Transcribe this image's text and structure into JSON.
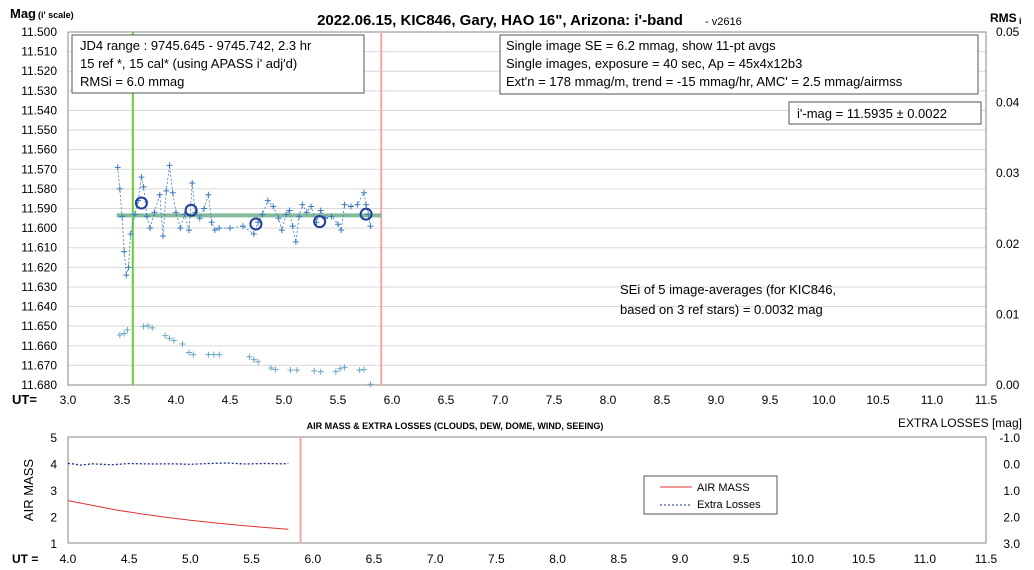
{
  "chart_data": [
    {
      "type": "scatter",
      "title": "2022.06.15, KIC846, Gary, HAO 16\", Arizona: i'-band",
      "version": "- v2616",
      "ylabel_left": "Mag",
      "ylabel_left_sub": "(i' scale)",
      "ylabel_right": "RMS",
      "ylabel_right_sub": "i",
      "xlabel": "UT=",
      "xlim": [
        3.0,
        11.5
      ],
      "x_ticks": [
        "3.0",
        "3.5",
        "4.0",
        "4.5",
        "5.0",
        "5.5",
        "6.0",
        "6.5",
        "7.0",
        "7.5",
        "8.0",
        "8.5",
        "9.0",
        "9.5",
        "10.0",
        "10.5",
        "11.0",
        "11.5"
      ],
      "ylim": [
        11.5,
        11.68
      ],
      "y_reversed": true,
      "y_ticks": [
        "11.500",
        "11.510",
        "11.520",
        "11.530",
        "11.540",
        "11.550",
        "11.560",
        "11.570",
        "11.580",
        "11.590",
        "11.600",
        "11.610",
        "11.620",
        "11.630",
        "11.640",
        "11.650",
        "11.660",
        "11.670",
        "11.680"
      ],
      "y2lim": [
        0,
        0.05
      ],
      "y2_ticks": [
        "0.05",
        "0.04",
        "0.03",
        "0.02",
        "0.01",
        "0.00"
      ],
      "grid": "horizontal",
      "vertical_lines": [
        {
          "x": 3.6,
          "color": "#66cc33"
        },
        {
          "x": 5.9,
          "color": "#f4a6a6"
        }
      ],
      "mean_mag": 11.5935,
      "mean_x_range": [
        3.45,
        5.9
      ],
      "mean_line_color": "#6fb08a",
      "single_images_color": "#3a7bbf",
      "single_images": [
        [
          3.46,
          11.569
        ],
        [
          3.48,
          11.58
        ],
        [
          3.5,
          11.594
        ],
        [
          3.52,
          11.612
        ],
        [
          3.54,
          11.624
        ],
        [
          3.56,
          11.62
        ],
        [
          3.58,
          11.603
        ],
        [
          3.62,
          11.593
        ],
        [
          3.65,
          11.586
        ],
        [
          3.68,
          11.574
        ],
        [
          3.7,
          11.579
        ],
        [
          3.73,
          11.594
        ],
        [
          3.76,
          11.6
        ],
        [
          3.8,
          11.592
        ],
        [
          3.85,
          11.583
        ],
        [
          3.88,
          11.604
        ],
        [
          3.91,
          11.581
        ],
        [
          3.94,
          11.568
        ],
        [
          3.97,
          11.582
        ],
        [
          4.0,
          11.592
        ],
        [
          4.04,
          11.6
        ],
        [
          4.08,
          11.593
        ],
        [
          4.12,
          11.601
        ],
        [
          4.15,
          11.577
        ],
        [
          4.18,
          11.592
        ],
        [
          4.22,
          11.595
        ],
        [
          4.26,
          11.59
        ],
        [
          4.3,
          11.583
        ],
        [
          4.33,
          11.597
        ],
        [
          4.36,
          11.601
        ],
        [
          4.4,
          11.6
        ],
        [
          4.5,
          11.6
        ],
        [
          4.62,
          11.599
        ],
        [
          4.72,
          11.603
        ],
        [
          4.76,
          11.597
        ],
        [
          4.8,
          11.593
        ],
        [
          4.85,
          11.586
        ],
        [
          4.9,
          11.589
        ],
        [
          4.95,
          11.595
        ],
        [
          4.98,
          11.601
        ],
        [
          5.02,
          11.593
        ],
        [
          5.05,
          11.591
        ],
        [
          5.08,
          11.599
        ],
        [
          5.11,
          11.607
        ],
        [
          5.14,
          11.594
        ],
        [
          5.17,
          11.588
        ],
        [
          5.21,
          11.592
        ],
        [
          5.25,
          11.589
        ],
        [
          5.3,
          11.597
        ],
        [
          5.34,
          11.591
        ],
        [
          5.38,
          11.595
        ],
        [
          5.44,
          11.594
        ],
        [
          5.5,
          11.598
        ],
        [
          5.53,
          11.601
        ],
        [
          5.56,
          11.588
        ],
        [
          5.62,
          11.589
        ],
        [
          5.68,
          11.588
        ],
        [
          5.74,
          11.582
        ],
        [
          5.76,
          11.588
        ],
        [
          5.78,
          11.593
        ],
        [
          5.8,
          11.599
        ]
      ],
      "averages": [
        [
          3.68,
          11.5872
        ],
        [
          4.14,
          11.5909
        ],
        [
          4.74,
          11.5979
        ],
        [
          5.33,
          11.5967
        ],
        [
          5.76,
          11.5929
        ]
      ],
      "rms_color": "#6aa8c4",
      "rms_points": [
        [
          3.48,
          0.0071
        ],
        [
          3.52,
          0.0073
        ],
        [
          3.55,
          0.0078
        ],
        [
          3.7,
          0.0083
        ],
        [
          3.74,
          0.0084
        ],
        [
          3.78,
          0.0081
        ],
        [
          3.9,
          0.007
        ],
        [
          3.94,
          0.0066
        ],
        [
          3.98,
          0.0063
        ],
        [
          4.06,
          0.0058
        ],
        [
          4.12,
          0.0046
        ],
        [
          4.16,
          0.0043
        ],
        [
          4.3,
          0.0043
        ],
        [
          4.35,
          0.0043
        ],
        [
          4.4,
          0.0043
        ],
        [
          4.68,
          0.004
        ],
        [
          4.72,
          0.0036
        ],
        [
          4.76,
          0.0033
        ],
        [
          4.88,
          0.0024
        ],
        [
          4.92,
          0.0022
        ],
        [
          5.06,
          0.0021
        ],
        [
          5.12,
          0.0021
        ],
        [
          5.28,
          0.002
        ],
        [
          5.34,
          0.0019
        ],
        [
          5.48,
          0.0019
        ],
        [
          5.52,
          0.0023
        ],
        [
          5.56,
          0.0025
        ],
        [
          5.7,
          0.0021
        ],
        [
          5.74,
          0.0022
        ],
        [
          5.8,
          0.0001
        ]
      ],
      "annotations": {
        "range_box": [
          "JD4 range : 9745.645 - 9745.742, 2.3  hr",
          "15 ref *, 15 cal* (using APASS i' adj'd)",
          "RMSi = 6.0 mmag"
        ],
        "info_box": [
          "Single image SE = 6.2 mmag, show 11-pt avgs",
          "Single images, exposure = 40 sec, Ap = 45x4x12b3",
          "Ext'n = 178 mmag/m, trend = -15 mmag/hr, AMC' = 2.5 mmag/airmss"
        ],
        "mag_box": "i'-mag = 11.5935 ± 0.0022",
        "sei_box": [
          "SEi of 5 image-averages (for KIC846,",
          "based on 3 ref stars) = 0.0032 mag"
        ]
      }
    },
    {
      "type": "line",
      "title": "AIR MASS & EXTRA LOSSES (CLOUDS, DEW, DOME, WIND, SEEING)",
      "ylabel_left": "AIR MASS",
      "ylabel_right": "EXTRA LOSSES [mag]",
      "xlabel": "UT =",
      "xlim": [
        4.0,
        11.5
      ],
      "x_ticks": [
        "4.0",
        "4.5",
        "5.0",
        "5.5",
        "6.0",
        "6.5",
        "7.0",
        "7.5",
        "8.0",
        "8.5",
        "9.0",
        "9.5",
        "10.0",
        "10.5",
        "11.0",
        "11.5"
      ],
      "ylim": [
        1,
        5
      ],
      "y_ticks": [
        "5",
        "4",
        "3",
        "2",
        "1"
      ],
      "y2lim": [
        -1.0,
        3.0
      ],
      "y2_reversed": true,
      "y2_ticks": [
        "-1.0",
        "0.0",
        "1.0",
        "2.0",
        "3.0"
      ],
      "vertical_lines": [
        {
          "x": 5.9,
          "color": "#f4a6a6"
        }
      ],
      "legend": {
        "position": "center-right",
        "entries": [
          "AIR MASS",
          "Extra Losses"
        ]
      },
      "series": [
        {
          "name": "AIR MASS",
          "axis": "left",
          "color": "#dd3333",
          "points": [
            [
              4.0,
              2.6
            ],
            [
              4.2,
              2.42
            ],
            [
              4.4,
              2.24
            ],
            [
              4.6,
              2.1
            ],
            [
              4.8,
              1.97
            ],
            [
              5.0,
              1.86
            ],
            [
              5.2,
              1.76
            ],
            [
              5.4,
              1.67
            ],
            [
              5.6,
              1.59
            ],
            [
              5.8,
              1.52
            ]
          ]
        },
        {
          "name": "Extra Losses",
          "axis": "right",
          "color": "#1a2f8f",
          "points": [
            [
              4.0,
              0.0
            ],
            [
              4.05,
              0.02
            ],
            [
              4.1,
              0.06
            ],
            [
              4.2,
              0.01
            ],
            [
              4.35,
              0.05
            ],
            [
              4.5,
              0.0
            ],
            [
              4.7,
              0.02
            ],
            [
              4.85,
              0.01
            ],
            [
              5.0,
              0.03
            ],
            [
              5.15,
              0.0
            ],
            [
              5.3,
              -0.02
            ],
            [
              5.45,
              0.02
            ],
            [
              5.6,
              0.0
            ],
            [
              5.75,
              0.01
            ],
            [
              5.8,
              0.0
            ]
          ]
        }
      ]
    }
  ]
}
